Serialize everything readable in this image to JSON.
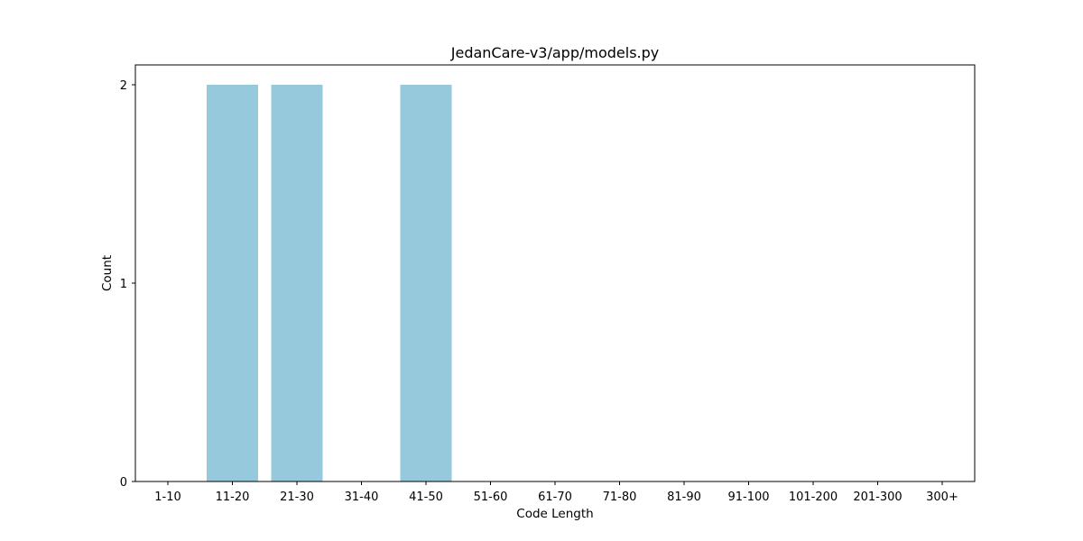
{
  "chart_data": {
    "type": "bar",
    "title": "JedanCare-v3/app/models.py",
    "xlabel": "Code Length",
    "ylabel": "Count",
    "categories": [
      "1-10",
      "11-20",
      "21-30",
      "31-40",
      "41-50",
      "51-60",
      "61-70",
      "71-80",
      "81-90",
      "91-100",
      "101-200",
      "201-300",
      "300+"
    ],
    "values": [
      0,
      2,
      2,
      0,
      2,
      0,
      0,
      0,
      0,
      0,
      0,
      0,
      0
    ],
    "ylim": [
      0,
      2.1
    ],
    "yticks": [
      0,
      1,
      2
    ],
    "bar_color": "#96c9dc",
    "grid": false,
    "legend": false
  }
}
